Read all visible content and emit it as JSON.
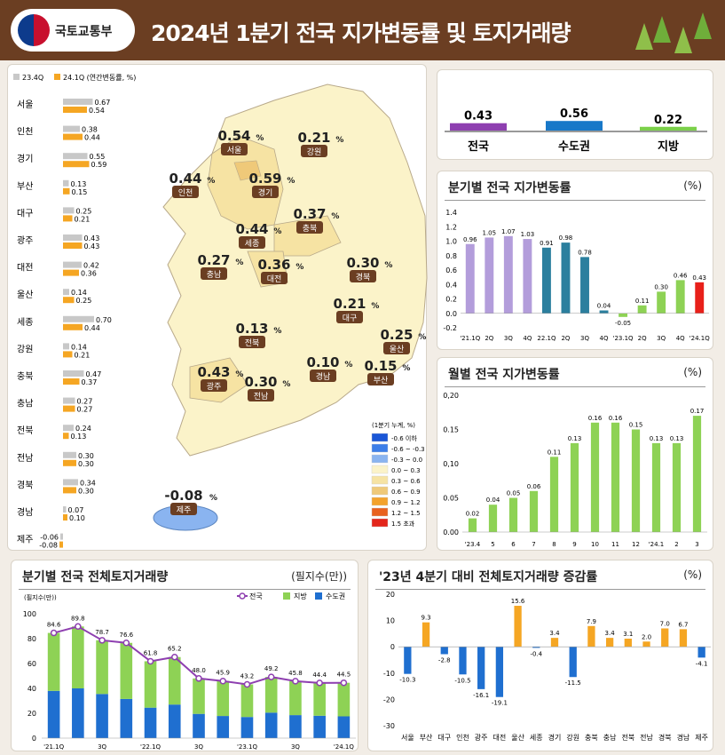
{
  "header": {
    "org": "국토교통부",
    "title": "2024년 1분기 전국 지가변동률 및 토지거래량"
  },
  "colors": {
    "header_bg": "#6b3e22",
    "gray_bar": "#c8c8c8",
    "orange_bar": "#f5a623",
    "purple": "#b39ddb",
    "teal": "#2b7f9e",
    "green": "#8ed255",
    "red": "#e8201a",
    "blue": "#1f6fd0"
  },
  "chart_data": [
    {
      "type": "bar",
      "id": "region_quarterly",
      "title": "",
      "legend": [
        "23.4Q",
        "24.1Q (연간변동률, %)"
      ],
      "categories": [
        "서울",
        "인천",
        "경기",
        "부산",
        "대구",
        "광주",
        "대전",
        "울산",
        "세종",
        "강원",
        "충북",
        "충남",
        "전북",
        "전남",
        "경북",
        "경남",
        "제주"
      ],
      "series": [
        {
          "name": "23.4Q",
          "values": [
            0.67,
            0.38,
            0.55,
            0.13,
            0.25,
            0.43,
            0.42,
            0.14,
            0.7,
            0.14,
            0.47,
            0.27,
            0.24,
            0.3,
            0.34,
            0.07,
            -0.06
          ]
        },
        {
          "name": "24.1Q",
          "values": [
            0.54,
            0.44,
            0.59,
            0.15,
            0.21,
            0.43,
            0.36,
            0.25,
            0.44,
            0.21,
            0.37,
            0.27,
            0.13,
            0.3,
            0.3,
            0.1,
            -0.08
          ]
        }
      ],
      "value_labels": [
        [
          "0.67",
          "0.54"
        ],
        [
          "0.38",
          "0.44"
        ],
        [
          "0.55",
          "0.59"
        ],
        [
          "0.13",
          "0.15"
        ],
        [
          "0.25",
          "0.21"
        ],
        [
          "0.43",
          "0.43"
        ],
        [
          "0.42",
          "0.36"
        ],
        [
          "0.14",
          "0.25"
        ],
        [
          "0.70",
          "0.44"
        ],
        [
          "0.14",
          "0.21"
        ],
        [
          "0.47",
          "0.37"
        ],
        [
          "0.27",
          "0.27"
        ],
        [
          "0.24",
          "0.13"
        ],
        [
          "0.30",
          "0.30"
        ],
        [
          "0.34",
          "0.30"
        ],
        [
          "0.07",
          "0.10"
        ],
        [
          "-0.06",
          "-0.08"
        ]
      ]
    },
    {
      "type": "map",
      "id": "regional_map",
      "regions": [
        {
          "name": "서울",
          "value": "0.54",
          "unit": "%"
        },
        {
          "name": "강원",
          "value": "0.21",
          "unit": "%"
        },
        {
          "name": "인천",
          "value": "0.44",
          "unit": "%"
        },
        {
          "name": "경기",
          "value": "0.59",
          "unit": "%"
        },
        {
          "name": "세종",
          "value": "0.44",
          "unit": "%"
        },
        {
          "name": "충북",
          "value": "0.37",
          "unit": "%"
        },
        {
          "name": "충남",
          "value": "0.27",
          "unit": "%"
        },
        {
          "name": "대전",
          "value": "0.36",
          "unit": "%"
        },
        {
          "name": "경북",
          "value": "0.30",
          "unit": "%"
        },
        {
          "name": "대구",
          "value": "0.21",
          "unit": "%"
        },
        {
          "name": "전북",
          "value": "0.13",
          "unit": "%"
        },
        {
          "name": "울산",
          "value": "0.25",
          "unit": "%"
        },
        {
          "name": "광주",
          "value": "0.43",
          "unit": "%"
        },
        {
          "name": "전남",
          "value": "0.30",
          "unit": "%"
        },
        {
          "name": "경남",
          "value": "0.10",
          "unit": "%"
        },
        {
          "name": "부산",
          "value": "0.15",
          "unit": "%"
        },
        {
          "name": "제주",
          "value": "-0.08",
          "unit": "%"
        }
      ],
      "legend_title": "(1분기 누계, %)",
      "legend": [
        {
          "label": "-0.6 이하",
          "color": "#1a56d6"
        },
        {
          "label": "-0.6 ~ -0.3",
          "color": "#3c7ee8"
        },
        {
          "label": "-0.3 ~ 0.0",
          "color": "#8ab4f0"
        },
        {
          "label": "0.0 ~ 0.3",
          "color": "#fbf3c9"
        },
        {
          "label": "0.3 ~ 0.6",
          "color": "#f6e3a3"
        },
        {
          "label": "0.6 ~ 0.9",
          "color": "#efc979"
        },
        {
          "label": "0.9 ~ 1.2",
          "color": "#f3a22c"
        },
        {
          "label": "1.2 ~ 1.5",
          "color": "#e8611e"
        },
        {
          "label": "1.5 초과",
          "color": "#e3261b"
        }
      ]
    },
    {
      "type": "bar",
      "id": "summary",
      "categories": [
        "전국",
        "수도권",
        "지방"
      ],
      "values": [
        0.43,
        0.56,
        0.22
      ],
      "labels": [
        "0.43",
        "0.56",
        "0.22"
      ]
    },
    {
      "type": "bar",
      "id": "quarterly_national",
      "title": "분기별 전국 지가변동률",
      "unit": "(%)",
      "categories": [
        "'21.1Q",
        "2Q",
        "3Q",
        "4Q",
        "22.1Q",
        "2Q",
        "3Q",
        "4Q",
        "'23.1Q",
        "2Q",
        "3Q",
        "4Q",
        "'24.1Q"
      ],
      "values": [
        0.96,
        1.05,
        1.07,
        1.03,
        0.91,
        0.98,
        0.78,
        0.04,
        -0.05,
        0.11,
        0.3,
        0.46,
        0.43
      ],
      "labels": [
        "0.96",
        "1.05",
        "1.07",
        "1.03",
        "0.91",
        "0.98",
        "0.78",
        "0.04",
        "-0.05",
        "0.11",
        "0.30",
        "0.46",
        "0.43"
      ],
      "ylim": [
        -0.2,
        1.4
      ],
      "yticks": [
        "1.4",
        "1.2",
        "1.0",
        "0.8",
        "0.6",
        "0.4",
        "0.2",
        "0.0",
        "-0.2"
      ]
    },
    {
      "type": "bar",
      "id": "monthly_national",
      "title": "월별 전국 지가변동률",
      "unit": "(%)",
      "categories": [
        "'23.4",
        "5",
        "6",
        "7",
        "8",
        "9",
        "10",
        "11",
        "12",
        "'24.1",
        "2",
        "3"
      ],
      "values": [
        0.02,
        0.04,
        0.05,
        0.06,
        0.11,
        0.13,
        0.16,
        0.16,
        0.15,
        0.13,
        0.13,
        0.17
      ],
      "labels": [
        "0.02",
        "0.04",
        "0.05",
        "0.06",
        "0.11",
        "0.13",
        "0.16",
        "0.16",
        "0.15",
        "0.13",
        "0.13",
        "0.17"
      ],
      "ylim": [
        0,
        0.2
      ],
      "yticks": [
        "0,20",
        "0.15",
        "0,10",
        "0.05",
        "0.00"
      ]
    },
    {
      "type": "bar",
      "id": "quarterly_transactions",
      "title": "분기별 전국 전체토지거래량",
      "unit": "(필지수(만))",
      "yunit": "(필지수(만))",
      "legend": [
        "전국",
        "지방",
        "수도권"
      ],
      "categories": [
        "'21.1Q",
        "",
        "3Q",
        "",
        "'22.1Q",
        "",
        "3Q",
        "",
        "'23.1Q",
        "",
        "3Q",
        "",
        "'24.1Q"
      ],
      "series": [
        {
          "name": "전국",
          "values": [
            84.6,
            89.8,
            78.7,
            76.6,
            61.8,
            65.2,
            48.0,
            45.9,
            43.2,
            49.2,
            45.8,
            44.4,
            44.5
          ]
        },
        {
          "name": "수도권",
          "values": [
            38.0,
            40.0,
            35.5,
            31.5,
            24.5,
            27.0,
            19.5,
            17.8,
            17.0,
            20.5,
            18.5,
            18.0,
            17.5
          ]
        },
        {
          "name": "지방",
          "values": [
            46.6,
            49.8,
            43.2,
            45.1,
            37.3,
            38.2,
            28.5,
            28.1,
            26.2,
            28.7,
            27.3,
            26.4,
            27.0
          ]
        }
      ],
      "labels": [
        "84.6",
        "89.8",
        "78.7",
        "76.6",
        "61.8",
        "65.2",
        "48.0",
        "45.9",
        "43.2",
        "49.2",
        "45.8",
        "44.4",
        "44.5"
      ],
      "ylim": [
        0,
        100
      ],
      "yticks": [
        "100",
        "80",
        "60",
        "40",
        "20",
        "0"
      ]
    },
    {
      "type": "bar",
      "id": "yoy_transactions",
      "title": "'23년 4분기 대비 전체토지거래량 증감률",
      "unit": "(%)",
      "categories": [
        "서울",
        "부산",
        "대구",
        "인천",
        "광주",
        "대전",
        "울산",
        "세종",
        "경기",
        "강원",
        "충북",
        "충남",
        "전북",
        "전남",
        "경북",
        "경남",
        "제주"
      ],
      "values": [
        -10.3,
        9.3,
        -2.8,
        -10.5,
        -16.1,
        -19.1,
        15.6,
        -0.4,
        3.4,
        -11.5,
        7.9,
        3.4,
        3.1,
        2.0,
        7.0,
        6.7,
        -4.1
      ],
      "labels": [
        "-10.3",
        "9.3",
        "-2.8",
        "-10.5",
        "-16.1",
        "-19.1",
        "15.6",
        "-0.4",
        "3.4",
        "-11.5",
        "7.9",
        "3.4",
        "3.1",
        "2.0",
        "7.0",
        "6.7",
        "-4.1"
      ],
      "ylim": [
        -30,
        20
      ],
      "yticks": [
        "20",
        "10",
        "0",
        "-10",
        "-20",
        "-30"
      ]
    }
  ]
}
